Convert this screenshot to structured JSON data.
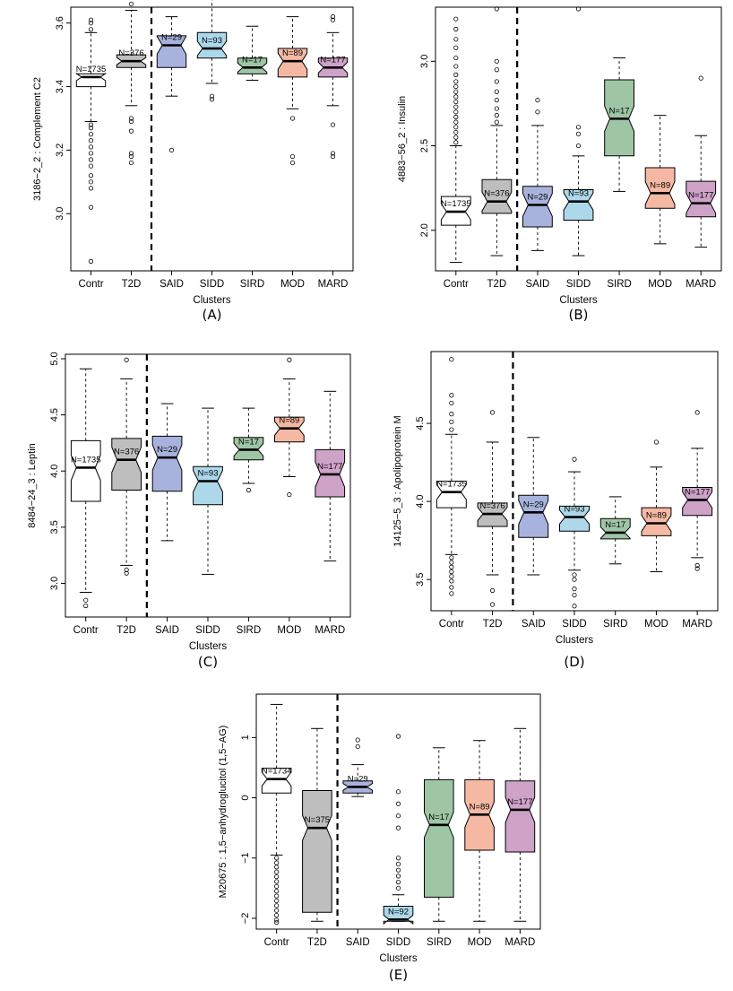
{
  "chart_data": [
    {
      "type": "boxplot",
      "panel_label": "(A)",
      "xlabel": "Clusters",
      "ylabel": "3186−2_2 : Complement C2",
      "categories": [
        "Contr",
        "T2D",
        "SAID",
        "SIDD",
        "SIRD",
        "MOD",
        "MARD"
      ],
      "ylim": [
        2.82,
        3.65
      ],
      "yticks": [
        3.0,
        3.2,
        3.4,
        3.6
      ],
      "tick_labels": [
        "3.0",
        "3.2",
        "3.4",
        "3.6"
      ],
      "separator_after": "T2D",
      "boxes": [
        {
          "label": "N=1735",
          "color": "#ffffff",
          "q1": 3.4,
          "median": 3.43,
          "q3": 3.44,
          "whisker_low": 3.29,
          "whisker_high": 3.57,
          "outliers": [
            2.85,
            3.02,
            3.08,
            3.1,
            3.12,
            3.15,
            3.17,
            3.19,
            3.21,
            3.23,
            3.25,
            3.27,
            3.28,
            3.58,
            3.6,
            3.61
          ]
        },
        {
          "label": "N=376",
          "color": "#bebebe",
          "q1": 3.46,
          "median": 3.48,
          "q3": 3.5,
          "whisker_low": 3.34,
          "whisker_high": 3.64,
          "outliers": [
            3.16,
            3.18,
            3.19,
            3.26,
            3.29,
            3.3,
            3.66,
            3.68
          ]
        },
        {
          "label": "N=29",
          "color": "#a8b3dd",
          "q1": 3.46,
          "median": 3.53,
          "q3": 3.56,
          "whisker_low": 3.37,
          "whisker_high": 3.62,
          "outliers": [
            3.2
          ]
        },
        {
          "label": "N=93",
          "color": "#add8ea",
          "q1": 3.49,
          "median": 3.52,
          "q3": 3.57,
          "whisker_low": 3.41,
          "whisker_high": 3.68,
          "outliers": [
            3.37,
            3.36
          ]
        },
        {
          "label": "N=17",
          "color": "#9ec5a4",
          "q1": 3.44,
          "median": 3.46,
          "q3": 3.49,
          "whisker_low": 3.42,
          "whisker_high": 3.59,
          "outliers": []
        },
        {
          "label": "N=89",
          "color": "#f5b9a3",
          "q1": 3.43,
          "median": 3.48,
          "q3": 3.52,
          "whisker_low": 3.33,
          "whisker_high": 3.62,
          "outliers": [
            3.3,
            3.18,
            3.16
          ]
        },
        {
          "label": "N=177",
          "color": "#cfa2c8",
          "q1": 3.43,
          "median": 3.46,
          "q3": 3.49,
          "whisker_low": 3.34,
          "whisker_high": 3.57,
          "outliers": [
            3.28,
            3.19,
            3.18,
            3.61,
            3.62
          ]
        }
      ]
    },
    {
      "type": "boxplot",
      "panel_label": "(B)",
      "xlabel": "Clusters",
      "ylabel": "4883−56_2 : Insulin",
      "categories": [
        "Contr",
        "T2D",
        "SAID",
        "SIDD",
        "SIRD",
        "MOD",
        "MARD"
      ],
      "ylim": [
        1.76,
        3.32
      ],
      "yticks": [
        2.0,
        2.5,
        3.0
      ],
      "tick_labels": [
        "2.0",
        "2.5",
        "3.0"
      ],
      "separator_after": "T2D",
      "boxes": [
        {
          "label": "N=1735",
          "color": "#ffffff",
          "q1": 2.03,
          "median": 2.11,
          "q3": 2.2,
          "whisker_low": 1.81,
          "whisker_high": 2.5,
          "outliers": [
            2.52,
            2.55,
            2.58,
            2.61,
            2.64,
            2.67,
            2.7,
            2.73,
            2.76,
            2.79,
            2.82,
            2.85,
            2.88,
            2.92,
            2.97,
            3.02,
            3.08,
            3.13,
            3.19,
            3.25
          ]
        },
        {
          "label": "N=376",
          "color": "#bebebe",
          "q1": 2.1,
          "median": 2.17,
          "q3": 2.3,
          "whisker_low": 1.85,
          "whisker_high": 2.62,
          "outliers": [
            2.64,
            2.68,
            2.72,
            2.77,
            2.82,
            2.88,
            2.95,
            3.0,
            3.31
          ]
        },
        {
          "label": "N=29",
          "color": "#a8b3dd",
          "q1": 2.02,
          "median": 2.15,
          "q3": 2.26,
          "whisker_low": 1.88,
          "whisker_high": 2.62,
          "outliers": [
            2.7,
            2.77
          ]
        },
        {
          "label": "N=93",
          "color": "#add8ea",
          "q1": 2.06,
          "median": 2.17,
          "q3": 2.24,
          "whisker_low": 1.85,
          "whisker_high": 2.44,
          "outliers": [
            2.5,
            2.57,
            2.61,
            3.31
          ]
        },
        {
          "label": "N=17",
          "color": "#9ec5a4",
          "q1": 2.44,
          "median": 2.66,
          "q3": 2.89,
          "whisker_low": 2.23,
          "whisker_high": 3.02,
          "outliers": []
        },
        {
          "label": "N=89",
          "color": "#f5b9a3",
          "q1": 2.13,
          "median": 2.22,
          "q3": 2.37,
          "whisker_low": 1.92,
          "whisker_high": 2.68,
          "outliers": []
        },
        {
          "label": "N=177",
          "color": "#cfa2c8",
          "q1": 2.08,
          "median": 2.16,
          "q3": 2.29,
          "whisker_low": 1.9,
          "whisker_high": 2.56,
          "outliers": [
            2.9
          ]
        }
      ]
    },
    {
      "type": "boxplot",
      "panel_label": "(C)",
      "xlabel": "Clusters",
      "ylabel": "8484−24_3 : Leptin",
      "categories": [
        "Contr",
        "T2D",
        "SAID",
        "SIDD",
        "SIRD",
        "MOD",
        "MARD"
      ],
      "ylim": [
        2.7,
        5.04
      ],
      "yticks": [
        3.0,
        3.5,
        4.0,
        4.5,
        5.0
      ],
      "tick_labels": [
        "3.0",
        "3.5",
        "4.0",
        "4.5",
        "5.0"
      ],
      "separator_after": "T2D",
      "boxes": [
        {
          "label": "N=1735",
          "color": "#ffffff",
          "q1": 3.73,
          "median": 4.03,
          "q3": 4.27,
          "whisker_low": 2.92,
          "whisker_high": 4.91,
          "outliers": [
            2.85,
            2.8
          ]
        },
        {
          "label": "N=376",
          "color": "#bebebe",
          "q1": 3.83,
          "median": 4.1,
          "q3": 4.29,
          "whisker_low": 3.16,
          "whisker_high": 4.82,
          "outliers": [
            3.12,
            3.09,
            4.99
          ]
        },
        {
          "label": "N=29",
          "color": "#a8b3dd",
          "q1": 3.82,
          "median": 4.12,
          "q3": 4.31,
          "whisker_low": 3.38,
          "whisker_high": 4.6,
          "outliers": []
        },
        {
          "label": "N=93",
          "color": "#add8ea",
          "q1": 3.7,
          "median": 3.91,
          "q3": 4.04,
          "whisker_low": 3.08,
          "whisker_high": 4.56,
          "outliers": []
        },
        {
          "label": "N=17",
          "color": "#9ec5a4",
          "q1": 4.1,
          "median": 4.19,
          "q3": 4.3,
          "whisker_low": 3.89,
          "whisker_high": 4.56,
          "outliers": [
            3.83
          ]
        },
        {
          "label": "N=89",
          "color": "#f5b9a3",
          "q1": 4.26,
          "median": 4.38,
          "q3": 4.48,
          "whisker_low": 3.95,
          "whisker_high": 4.82,
          "outliers": [
            3.79,
            4.99
          ]
        },
        {
          "label": "N=177",
          "color": "#cfa2c8",
          "q1": 3.77,
          "median": 3.97,
          "q3": 4.19,
          "whisker_low": 3.2,
          "whisker_high": 4.71,
          "outliers": []
        }
      ]
    },
    {
      "type": "boxplot",
      "panel_label": "(D)",
      "xlabel": "Clusters",
      "ylabel": "14125−5_3 : Apolipoprotein M",
      "categories": [
        "Contr",
        "T2D",
        "SAID",
        "SIDD",
        "SIRD",
        "MOD",
        "MARD"
      ],
      "ylim": [
        3.3,
        4.96
      ],
      "yticks": [
        3.5,
        4.0,
        4.5
      ],
      "tick_labels": [
        "3.5",
        "4.0",
        "4.5"
      ],
      "separator_after": "T2D",
      "boxes": [
        {
          "label": "N=1735",
          "color": "#ffffff",
          "q1": 3.96,
          "median": 4.06,
          "q3": 4.13,
          "whisker_low": 3.66,
          "whisker_high": 4.43,
          "outliers": [
            3.64,
            3.61,
            3.58,
            3.55,
            3.52,
            3.49,
            3.45,
            3.41,
            4.46,
            4.51,
            4.56,
            4.63,
            4.68,
            4.91
          ]
        },
        {
          "label": "N=376",
          "color": "#bebebe",
          "q1": 3.84,
          "median": 3.92,
          "q3": 3.99,
          "whisker_low": 3.53,
          "whisker_high": 4.38,
          "outliers": [
            3.43,
            3.34,
            4.57
          ]
        },
        {
          "label": "N=29",
          "color": "#a8b3dd",
          "q1": 3.77,
          "median": 3.93,
          "q3": 4.04,
          "whisker_low": 3.53,
          "whisker_high": 4.41,
          "outliers": []
        },
        {
          "label": "N=93",
          "color": "#add8ea",
          "q1": 3.81,
          "median": 3.9,
          "q3": 3.97,
          "whisker_low": 3.56,
          "whisker_high": 4.19,
          "outliers": [
            3.53,
            3.5,
            3.44,
            3.4,
            3.33,
            4.27
          ]
        },
        {
          "label": "N=17",
          "color": "#9ec5a4",
          "q1": 3.76,
          "median": 3.8,
          "q3": 3.89,
          "whisker_low": 3.6,
          "whisker_high": 4.03,
          "outliers": []
        },
        {
          "label": "N=89",
          "color": "#f5b9a3",
          "q1": 3.78,
          "median": 3.86,
          "q3": 3.96,
          "whisker_low": 3.55,
          "whisker_high": 4.22,
          "outliers": [
            4.38
          ]
        },
        {
          "label": "N=177",
          "color": "#cfa2c8",
          "q1": 3.91,
          "median": 4.01,
          "q3": 4.09,
          "whisker_low": 3.64,
          "whisker_high": 4.34,
          "outliers": [
            3.59,
            3.57,
            4.57
          ]
        }
      ]
    },
    {
      "type": "boxplot",
      "panel_label": "(E)",
      "xlabel": "Clusters",
      "ylabel": "M20675 : 1,5−anhydroglucitol (1,5−AG)",
      "categories": [
        "Contr",
        "T2D",
        "SAID",
        "SIDD",
        "SIRD",
        "MOD",
        "MARD"
      ],
      "ylim": [
        -2.18,
        1.72
      ],
      "yticks": [
        -2,
        -1,
        0,
        1
      ],
      "tick_labels": [
        "−2",
        "−1",
        "0",
        "1"
      ],
      "separator_after": "T2D",
      "boxes": [
        {
          "label": "N=1734",
          "color": "#ffffff",
          "q1": 0.08,
          "median": 0.31,
          "q3": 0.49,
          "whisker_low": -0.95,
          "whisker_high": 1.55,
          "outliers": [
            -1.0,
            -1.08,
            -1.15,
            -1.23,
            -1.31,
            -1.39,
            -1.47,
            -1.55,
            -1.63,
            -1.71,
            -1.79,
            -1.87,
            -1.95,
            -2.03,
            -2.07
          ]
        },
        {
          "label": "N=375",
          "color": "#bebebe",
          "q1": -1.9,
          "median": -0.5,
          "q3": 0.12,
          "whisker_low": -2.05,
          "whisker_high": 1.15,
          "outliers": []
        },
        {
          "label": "N=29",
          "color": "#a8b3dd",
          "q1": 0.08,
          "median": 0.18,
          "q3": 0.28,
          "whisker_low": 0.02,
          "whisker_high": 0.55,
          "outliers": [
            0.85,
            0.96
          ]
        },
        {
          "label": "N=92",
          "color": "#add8ea",
          "q1": -2.05,
          "median": -2.02,
          "q3": -1.8,
          "whisker_low": -2.05,
          "whisker_high": -1.61,
          "outliers": [
            -0.5,
            -0.3,
            -0.1,
            0.1,
            1.02,
            -1.0,
            -1.1,
            -1.2,
            -1.3,
            -1.4,
            -1.5
          ]
        },
        {
          "label": "N=17",
          "color": "#9ec5a4",
          "q1": -1.65,
          "median": -0.45,
          "q3": 0.3,
          "whisker_low": -2.05,
          "whisker_high": 0.83,
          "outliers": []
        },
        {
          "label": "N=89",
          "color": "#f5b9a3",
          "q1": -0.87,
          "median": -0.28,
          "q3": 0.3,
          "whisker_low": -2.05,
          "whisker_high": 0.95,
          "outliers": []
        },
        {
          "label": "N=177",
          "color": "#cfa2c8",
          "q1": -0.9,
          "median": -0.2,
          "q3": 0.28,
          "whisker_low": -2.05,
          "whisker_high": 1.15,
          "outliers": []
        }
      ]
    }
  ]
}
